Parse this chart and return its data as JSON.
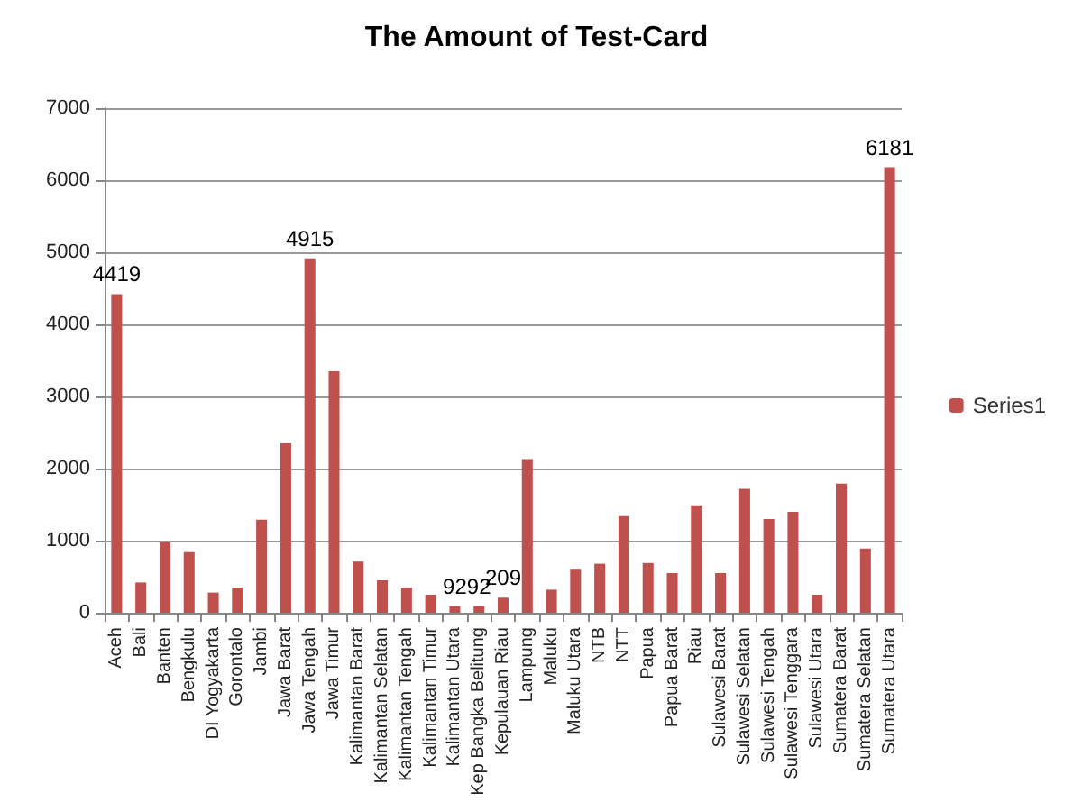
{
  "chart_data": {
    "type": "bar",
    "title": "The Amount of Test-Card",
    "categories": [
      "Aceh",
      "Bali",
      "Banten",
      "Bengkulu",
      "DI Yogyakarta",
      "Gorontalo",
      "Jambi",
      "Jawa Barat",
      "Jawa Tengah",
      "Jawa Timur",
      "Kalimantan Barat",
      "Kalimantan Selatan",
      "Kalimantan Tengah",
      "Kalimantan Timur",
      "Kalimantan Utara",
      "Kep Bangka Belitung",
      "Kepulauan Riau",
      "Lampung",
      "Maluku",
      "Maluku Utara",
      "NTB",
      "NTT",
      "Papua",
      "Papua Barat",
      "Riau",
      "Sulawesi Barat",
      "Sulawesi Selatan",
      "Sulawesi Tengah",
      "Sulawesi Tenggara",
      "Sulawesi Utara",
      "Sumatera Barat",
      "Sumatera Selatan",
      "Sumatera Utara"
    ],
    "series": [
      {
        "name": "Series1",
        "color": "#c0504d",
        "values": [
          4419,
          420,
          980,
          840,
          280,
          350,
          1290,
          2350,
          4915,
          3350,
          710,
          450,
          350,
          250,
          92,
          92,
          209,
          2130,
          320,
          610,
          680,
          1340,
          690,
          550,
          1490,
          550,
          1720,
          1300,
          1400,
          250,
          1790,
          890,
          6181
        ],
        "value_labels": [
          "4419",
          null,
          null,
          null,
          null,
          null,
          null,
          null,
          "4915",
          null,
          null,
          null,
          null,
          null,
          "92",
          "92",
          "209",
          null,
          null,
          null,
          null,
          null,
          null,
          null,
          null,
          null,
          null,
          null,
          null,
          null,
          null,
          null,
          "6181"
        ]
      }
    ],
    "ylim": [
      0,
      7000
    ],
    "yticks": [
      0,
      1000,
      2000,
      3000,
      4000,
      5000,
      6000,
      7000
    ],
    "grid": "y",
    "legend": "right"
  }
}
